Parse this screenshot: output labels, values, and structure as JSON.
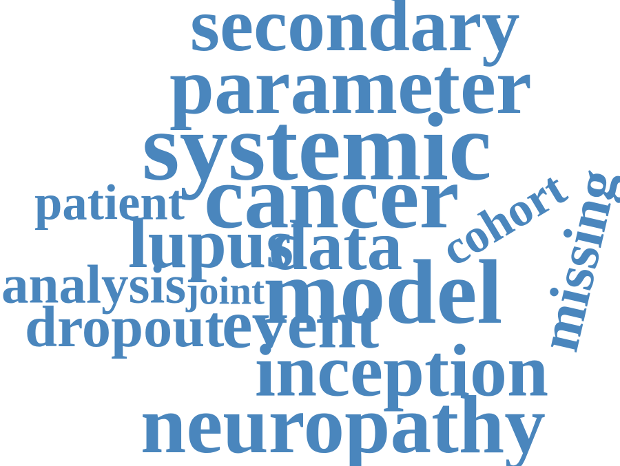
{
  "colors": {
    "word": "#4a86bd",
    "background": "#ffffff"
  },
  "words": [
    {
      "key": "secondary",
      "text": "secondary"
    },
    {
      "key": "parameter",
      "text": "parameter"
    },
    {
      "key": "systemic",
      "text": "systemic"
    },
    {
      "key": "cancer",
      "text": "cancer"
    },
    {
      "key": "patient",
      "text": "patient"
    },
    {
      "key": "lupus",
      "text": "lupus"
    },
    {
      "key": "data",
      "text": "data"
    },
    {
      "key": "cohort",
      "text": "cohort"
    },
    {
      "key": "missing",
      "text": "missing"
    },
    {
      "key": "model",
      "text": "model"
    },
    {
      "key": "analysis",
      "text": "analysis"
    },
    {
      "key": "joint",
      "text": "joint"
    },
    {
      "key": "dropout",
      "text": "dropout"
    },
    {
      "key": "event",
      "text": "event"
    },
    {
      "key": "inception",
      "text": "inception"
    },
    {
      "key": "neuropathy",
      "text": "neuropathy"
    }
  ]
}
